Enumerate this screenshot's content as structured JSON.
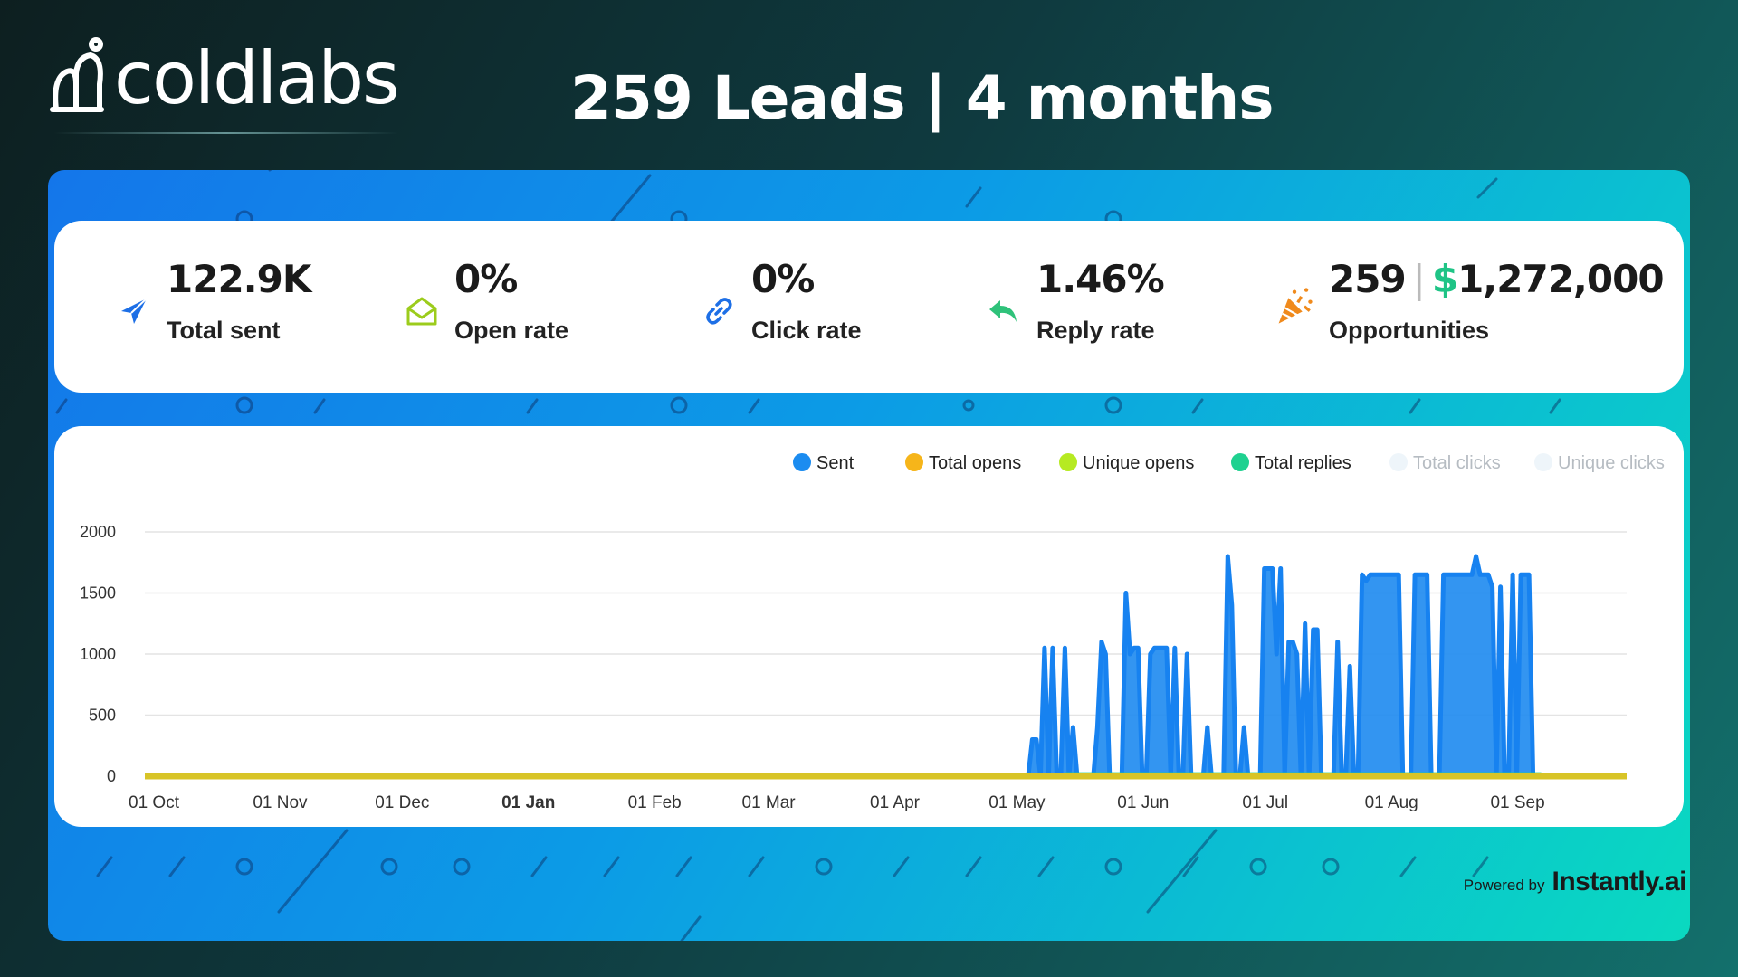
{
  "brand": {
    "name": "coldlabs"
  },
  "headline": "259 Leads | 4 months",
  "stats": [
    {
      "value": "122.9K",
      "label": "Total sent",
      "icon": "paper-plane-icon",
      "color": "#1d6fe6"
    },
    {
      "value": "0%",
      "label": "Open rate",
      "icon": "open-envelope-icon",
      "color": "#9ccc1c"
    },
    {
      "value": "0%",
      "label": "Click rate",
      "icon": "link-icon",
      "color": "#1d6fe6"
    },
    {
      "value": "1.46%",
      "label": "Reply rate",
      "icon": "reply-arrow-icon",
      "color": "#2fc27a"
    },
    {
      "value": "259",
      "value_extra": "1,272,000",
      "currency": "$",
      "label": "Opportunities",
      "icon": "party-popper-icon",
      "color": "#f08a1c"
    }
  ],
  "powered_by": {
    "text": "Powered by",
    "logo": "Instantly.ai"
  },
  "chart_data": {
    "type": "area",
    "x_tick_labels": [
      "01 Oct",
      "01 Nov",
      "01 Dec",
      "01 Jan",
      "01 Feb",
      "01 Mar",
      "01 Apr",
      "01 May",
      "01 Jun",
      "01 Jul",
      "01 Aug",
      "01 Sep"
    ],
    "bold_tick": "01 Jan",
    "y_ticks": [
      0,
      500,
      1000,
      1500,
      2000
    ],
    "ylim": [
      0,
      2000
    ],
    "legend_position": "top-right",
    "legend": [
      {
        "name": "Sent",
        "color": "#1b8cf0",
        "faded": false
      },
      {
        "name": "Total opens",
        "color": "#f6b51a",
        "faded": false
      },
      {
        "name": "Unique opens",
        "color": "#b6ea22",
        "faded": false
      },
      {
        "name": "Total replies",
        "color": "#1fd190",
        "faded": false
      },
      {
        "name": "Total clicks",
        "color": "#eef5fa",
        "faded": true
      },
      {
        "name": "Unique clicks",
        "color": "#eef5fa",
        "faded": true
      }
    ],
    "series": [
      {
        "name": "Sent",
        "color": "#1b8cf0",
        "x_start": "2023-05-06",
        "daily_values": [
          0,
          300,
          300,
          0,
          1050,
          0,
          1050,
          0,
          0,
          1050,
          0,
          400,
          0,
          0,
          0,
          0,
          0,
          400,
          1100,
          1000,
          0,
          0,
          0,
          0,
          1500,
          1000,
          1050,
          1050,
          0,
          0,
          1000,
          1050,
          1050,
          1050,
          1050,
          0,
          1050,
          0,
          0,
          1000,
          0,
          0,
          0,
          0,
          400,
          0,
          0,
          0,
          0,
          1800,
          1400,
          0,
          0,
          400,
          0,
          0,
          0,
          0,
          1700,
          1700,
          1700,
          1000,
          1700,
          0,
          1100,
          1100,
          1000,
          0,
          1250,
          0,
          1200,
          1200,
          0,
          0,
          0,
          0,
          1100,
          0,
          0,
          900,
          0,
          0,
          1650,
          1600,
          1650,
          1650,
          1650,
          1650,
          1650,
          1650,
          1650,
          1650,
          0,
          0,
          0,
          1650,
          1650,
          1650,
          1650,
          0,
          0,
          0,
          1650,
          1650,
          1650,
          1650,
          1650,
          1650,
          1650,
          1650,
          1800,
          1650,
          1650,
          1650,
          1550,
          0,
          1550,
          0,
          0,
          1650,
          0,
          1650,
          1650,
          1650,
          0,
          0,
          0
        ]
      },
      {
        "name": "Total opens",
        "color": "#d8c427",
        "constant": 0
      },
      {
        "name": "Total replies",
        "color": "#1fd190",
        "note": ""
      }
    ]
  }
}
